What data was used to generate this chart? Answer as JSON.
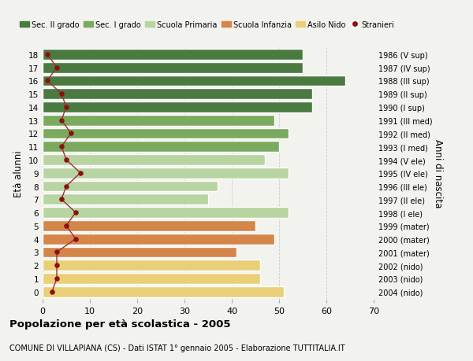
{
  "ages": [
    18,
    17,
    16,
    15,
    14,
    13,
    12,
    11,
    10,
    9,
    8,
    7,
    6,
    5,
    4,
    3,
    2,
    1,
    0
  ],
  "bar_values": [
    55,
    55,
    64,
    57,
    57,
    49,
    52,
    50,
    47,
    52,
    37,
    35,
    52,
    45,
    49,
    41,
    46,
    46,
    51
  ],
  "stranieri": [
    1,
    3,
    1,
    4,
    5,
    4,
    6,
    4,
    5,
    8,
    5,
    4,
    7,
    5,
    7,
    3,
    3,
    3,
    2
  ],
  "right_labels": [
    "1986 (V sup)",
    "1987 (IV sup)",
    "1988 (III sup)",
    "1989 (II sup)",
    "1990 (I sup)",
    "1991 (III med)",
    "1992 (II med)",
    "1993 (I med)",
    "1994 (V ele)",
    "1995 (IV ele)",
    "1996 (III ele)",
    "1997 (II ele)",
    "1998 (I ele)",
    "1999 (mater)",
    "2000 (mater)",
    "2001 (mater)",
    "2002 (nido)",
    "2003 (nido)",
    "2004 (nido)"
  ],
  "bar_colors": [
    "#4a7a40",
    "#4a7a40",
    "#4a7a40",
    "#4a7a40",
    "#4a7a40",
    "#7aaa5e",
    "#7aaa5e",
    "#7aaa5e",
    "#b8d4a0",
    "#b8d4a0",
    "#b8d4a0",
    "#b8d4a0",
    "#b8d4a0",
    "#d4854a",
    "#d4854a",
    "#d4854a",
    "#e8cf78",
    "#e8cf78",
    "#e8cf78"
  ],
  "legend_labels": [
    "Sec. II grado",
    "Sec. I grado",
    "Scuola Primaria",
    "Scuola Infanzia",
    "Asilo Nido",
    "Stranieri"
  ],
  "legend_colors": [
    "#4a7a40",
    "#7aaa5e",
    "#b8d4a0",
    "#d4854a",
    "#e8cf78",
    "#8b1010"
  ],
  "ylabel": "Età alunni",
  "ylabel_right": "Anni di nascita",
  "title": "Popolazione per età scolastica - 2005",
  "subtitle": "COMUNE DI VILLAPIANA (CS) - Dati ISTAT 1° gennaio 2005 - Elaborazione TUTTITALIA.IT",
  "xlim": [
    0,
    70
  ],
  "bg_color": "#f2f2ee",
  "grid_color": "#cccccc",
  "stranieri_color": "#8b1010",
  "stranieri_line_color": "#9b3030"
}
